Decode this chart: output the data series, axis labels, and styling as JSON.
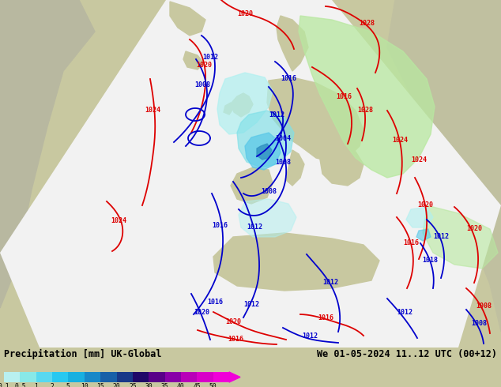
{
  "title_left": "Precipitation [mm] UK-Global",
  "title_right": "We 01-05-2024 11..12 UTC (00+12)",
  "colorbar_labels": [
    "0.1",
    "0.5",
    "1",
    "2",
    "5",
    "10",
    "15",
    "20",
    "25",
    "30",
    "35",
    "40",
    "45",
    "50"
  ],
  "colorbar_colors": [
    "#b8f0f0",
    "#88e8e8",
    "#58d8f0",
    "#28c8f0",
    "#18b0e0",
    "#1888c8",
    "#1860a8",
    "#183888",
    "#200868",
    "#580088",
    "#8800a8",
    "#b800b8",
    "#d800c8",
    "#f000d8"
  ],
  "map_bg": "#c8c8a0",
  "outside_color": "#a8a898",
  "domain_color": "#f0f0f0",
  "ocean_color": "#d0d8e8",
  "land_color": "#c8c8a0",
  "green_precip": "#b8e8a0",
  "cyan_precip_light": "#b0f0f0",
  "cyan_precip": "#80e0e8",
  "blue_precip": "#58c8e8",
  "blue_precip2": "#3090c0",
  "fig_width": 6.34,
  "fig_height": 4.9,
  "dpi": 100
}
